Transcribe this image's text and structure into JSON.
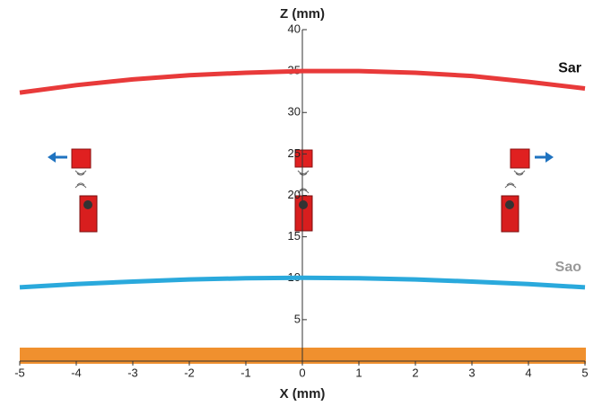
{
  "chart_data": {
    "type": "line",
    "x_label": "X (mm)",
    "y_label": "Z (mm)",
    "x": [
      -5,
      -4,
      -3,
      -2,
      -1,
      0,
      1,
      2,
      3,
      4,
      5
    ],
    "series": [
      {
        "name": "Sar",
        "color": "#e83a3a",
        "values": [
          32.4,
          33.3,
          34.0,
          34.5,
          34.8,
          35.0,
          35.0,
          34.8,
          34.4,
          33.7,
          32.9
        ]
      },
      {
        "name": "Sao",
        "color": "#2aa9dc",
        "values": [
          8.9,
          9.3,
          9.6,
          9.85,
          10.0,
          10.05,
          10.0,
          9.85,
          9.6,
          9.3,
          8.9
        ]
      }
    ],
    "xlim": [
      -5,
      5
    ],
    "ylim": [
      0,
      40
    ],
    "xticks": [
      -5,
      -4,
      -3,
      -2,
      -1,
      0,
      1,
      2,
      3,
      4,
      5
    ],
    "yticks": [
      5,
      10,
      15,
      20,
      25,
      30,
      35,
      40
    ],
    "grid": false
  }
}
